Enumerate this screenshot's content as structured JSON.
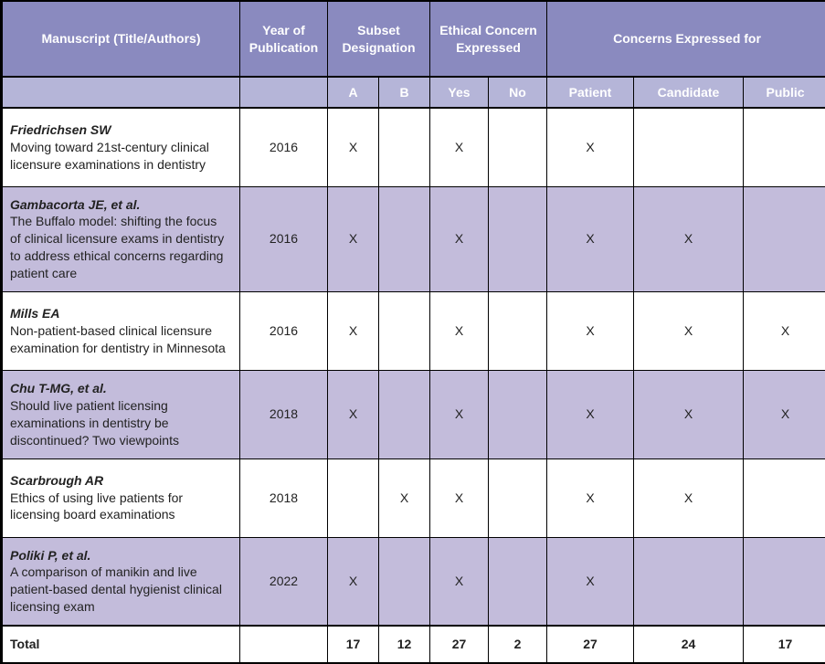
{
  "colors": {
    "header1_bg": "#8a8abf",
    "header2_bg": "#b5b5d8",
    "row_odd_bg": "#c3bcdb",
    "row_even_bg": "#ffffff",
    "header_fg": "#ffffff",
    "body_fg": "#222222",
    "border": "#000000"
  },
  "headers": {
    "manuscript": "Manuscript (Title/Authors)",
    "year": "Year of Publication",
    "subset": "Subset Designation",
    "ethical": "Ethical Concern Expressed",
    "concerns_for": "Concerns Expressed for",
    "a": "A",
    "b": "B",
    "yes": "Yes",
    "no": "No",
    "patient": "Patient",
    "candidate": "Candidate",
    "public": "Public",
    "blank": ""
  },
  "rows": [
    {
      "author": "Friedrichsen SW",
      "title": "Moving toward 21st-century clinical licensure examinations in dentistry",
      "year": "2016",
      "a": "X",
      "b": "",
      "yes": "X",
      "no": "",
      "patient": "X",
      "candidate": "",
      "public": ""
    },
    {
      "author": "Gambacorta JE, et al.",
      "title": "The Buffalo model: shifting the focus of clinical licensure exams in dentistry to address ethical concerns regarding patient care",
      "year": "2016",
      "a": "X",
      "b": "",
      "yes": "X",
      "no": "",
      "patient": "X",
      "candidate": "X",
      "public": ""
    },
    {
      "author": "Mills EA",
      "title": "Non-patient-based clinical licensure examination for dentistry in Minnesota",
      "year": "2016",
      "a": "X",
      "b": "",
      "yes": "X",
      "no": "",
      "patient": "X",
      "candidate": "X",
      "public": "X"
    },
    {
      "author": "Chu T-MG, et al.",
      "title": "Should live patient licensing examinations in dentistry be discontinued? Two viewpoints",
      "year": "2018",
      "a": "X",
      "b": "",
      "yes": "X",
      "no": "",
      "patient": "X",
      "candidate": "X",
      "public": "X"
    },
    {
      "author": "Scarbrough AR",
      "title": "Ethics of using live patients for licensing board examinations",
      "year": "2018",
      "a": "",
      "b": "X",
      "yes": "X",
      "no": "",
      "patient": "X",
      "candidate": "X",
      "public": ""
    },
    {
      "author": "Poliki P, et al.",
      "title": "A comparison of manikin and live patient-based dental hygienist clinical licensing exam",
      "year": "2022",
      "a": "X",
      "b": "",
      "yes": "X",
      "no": "",
      "patient": "X",
      "candidate": "",
      "public": ""
    }
  ],
  "total": {
    "label": "Total",
    "year": "",
    "a": "17",
    "b": "12",
    "yes": "27",
    "no": "2",
    "patient": "27",
    "candidate": "24",
    "public": "17"
  }
}
